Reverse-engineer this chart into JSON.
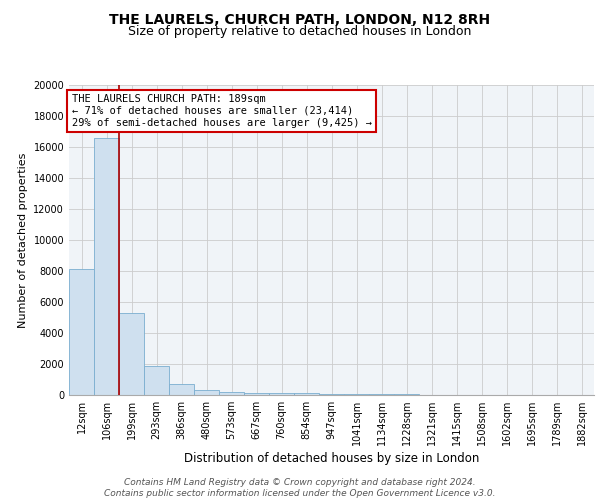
{
  "title1": "THE LAURELS, CHURCH PATH, LONDON, N12 8RH",
  "title2": "Size of property relative to detached houses in London",
  "xlabel": "Distribution of detached houses by size in London",
  "ylabel": "Number of detached properties",
  "categories": [
    "12sqm",
    "106sqm",
    "199sqm",
    "293sqm",
    "386sqm",
    "480sqm",
    "573sqm",
    "667sqm",
    "760sqm",
    "854sqm",
    "947sqm",
    "1041sqm",
    "1134sqm",
    "1228sqm",
    "1321sqm",
    "1415sqm",
    "1508sqm",
    "1602sqm",
    "1695sqm",
    "1789sqm",
    "1882sqm"
  ],
  "values": [
    8100,
    16600,
    5300,
    1850,
    700,
    300,
    200,
    150,
    150,
    100,
    80,
    60,
    50,
    40,
    30,
    20,
    15,
    10,
    8,
    5,
    3
  ],
  "bar_color": "#cfe0ef",
  "bar_edge_color": "#7aaed0",
  "vline_color": "#aa0000",
  "vline_x": 1.5,
  "annotation_line1": "THE LAURELS CHURCH PATH: 189sqm",
  "annotation_line2": "← 71% of detached houses are smaller (23,414)",
  "annotation_line3": "29% of semi-detached houses are larger (9,425) →",
  "annotation_edge_color": "#cc0000",
  "ylim": [
    0,
    20000
  ],
  "yticks": [
    0,
    2000,
    4000,
    6000,
    8000,
    10000,
    12000,
    14000,
    16000,
    18000,
    20000
  ],
  "bg_color": "#f0f4f8",
  "grid_color": "#cccccc",
  "footer": "Contains HM Land Registry data © Crown copyright and database right 2024.\nContains public sector information licensed under the Open Government Licence v3.0.",
  "title1_fontsize": 10,
  "title2_fontsize": 9,
  "xlabel_fontsize": 8.5,
  "ylabel_fontsize": 8,
  "tick_fontsize": 7,
  "annotation_fontsize": 7.5,
  "footer_fontsize": 6.5
}
